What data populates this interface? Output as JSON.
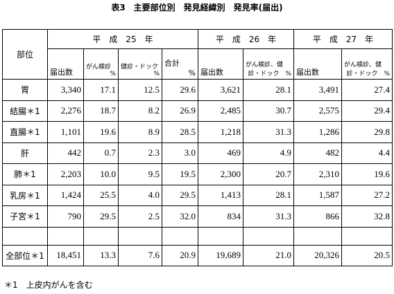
{
  "title": "表3　主要部位別　発見経緯別　発見率(届出)",
  "table": {
    "corner": "部位",
    "years": [
      "平　成　25　年",
      "平　成　26　年",
      "平　成　27　年"
    ],
    "subheaders": [
      [
        "届出数"
      ],
      [
        "がん検診",
        "%"
      ],
      [
        "健診・ドック",
        "%"
      ],
      [
        "合計",
        "%"
      ],
      [
        "届出数"
      ],
      [
        "がん検診、健",
        "診・ドック　%"
      ],
      [
        "届出数"
      ],
      [
        "がん検診、健",
        "診・ドック　%"
      ]
    ],
    "rows": [
      [
        "胃",
        "3,340",
        "17.1",
        "12.5",
        "29.6",
        "3,621",
        "28.1",
        "3,491",
        "27.4"
      ],
      [
        "結腸＊1",
        "2,276",
        "18.7",
        "8.2",
        "26.9",
        "2,485",
        "30.7",
        "2,575",
        "29.4"
      ],
      [
        "直腸＊1",
        "1,101",
        "19.6",
        "8.9",
        "28.5",
        "1,218",
        "31.3",
        "1,286",
        "29.8"
      ],
      [
        "肝",
        "442",
        "0.7",
        "2.3",
        "3.0",
        "469",
        "4.9",
        "482",
        "4.4"
      ],
      [
        "肺＊1",
        "2,203",
        "10.0",
        "9.5",
        "19.5",
        "2,300",
        "20.7",
        "2,310",
        "19.6"
      ],
      [
        "乳房＊1",
        "1,424",
        "25.5",
        "4.0",
        "29.5",
        "1,413",
        "28.1",
        "1,587",
        "27.2"
      ],
      [
        "子宮＊1",
        "790",
        "29.5",
        "2.5",
        "32.0",
        "834",
        "31.3",
        "866",
        "32.8"
      ]
    ],
    "total": [
      "全部位＊1",
      "18,451",
      "13.3",
      "7.6",
      "20.9",
      "19,689",
      "21.0",
      "20,326",
      "20.5"
    ]
  },
  "footnote": "＊1　上皮内がんを含む"
}
